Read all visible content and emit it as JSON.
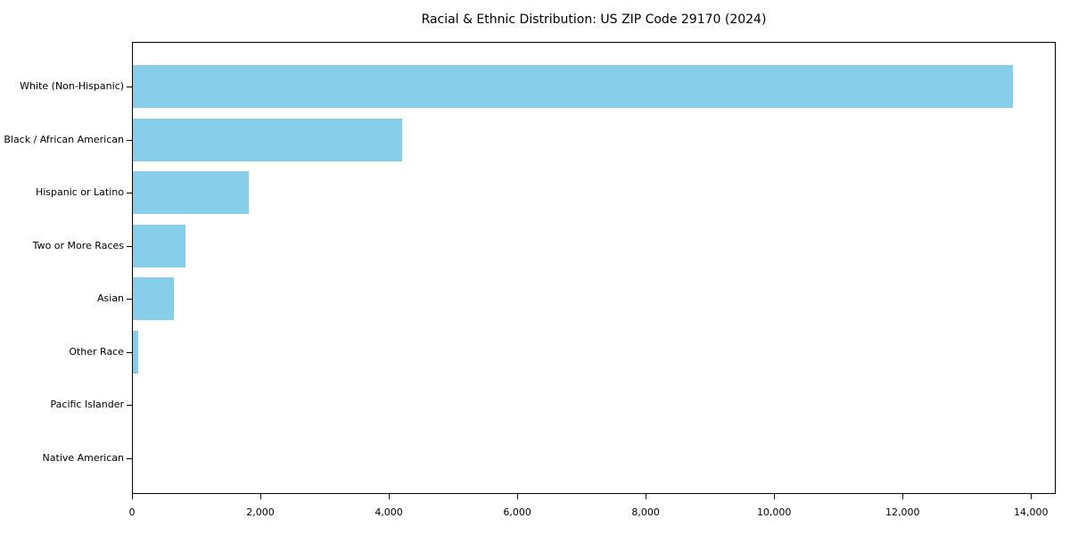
{
  "chart_data": {
    "type": "bar",
    "orientation": "horizontal",
    "title": "Racial & Ethnic Distribution: US ZIP Code 29170 (2024)",
    "categories": [
      "White (Non-Hispanic)",
      "Black / African American",
      "Hispanic or Latino",
      "Two or More Races",
      "Asian",
      "Other Race",
      "Pacific Islander",
      "Native American"
    ],
    "values": [
      13700,
      4200,
      1800,
      820,
      640,
      90,
      0,
      0
    ],
    "x_ticks": [
      0,
      2000,
      4000,
      6000,
      8000,
      10000,
      12000,
      14000
    ],
    "x_tick_labels": [
      "0",
      "2,000",
      "4,000",
      "6,000",
      "8,000",
      "10,000",
      "12,000",
      "14,000"
    ],
    "xlim": [
      0,
      14385
    ],
    "xlabel": "",
    "ylabel": "",
    "grid": false,
    "legend": "none",
    "bar_color": "#87CEEB",
    "axis_color": "#000000",
    "background_color": "#FFFFFF"
  }
}
